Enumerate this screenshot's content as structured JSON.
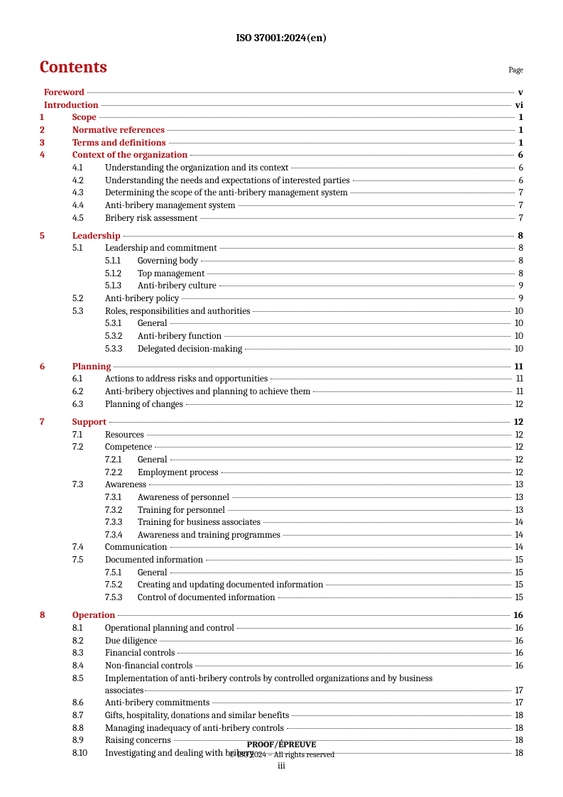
{
  "document": {
    "header": "ISO 37001:2024(en)",
    "contents_heading": "Contents",
    "page_label": "Page",
    "footer": {
      "proof": "PROOF/ÉPREUVE",
      "copyright": "© ISO 2024 – All rights reserved",
      "page_number": "iii"
    }
  },
  "toc": [
    {
      "type": "line",
      "level": 0,
      "num": "",
      "title": "Foreword",
      "page": "v",
      "bold": true,
      "red": true,
      "num_hidden": true
    },
    {
      "type": "line",
      "level": 0,
      "num": "",
      "title": "Introduction",
      "page": "vi",
      "bold": true,
      "red": true,
      "num_hidden": true
    },
    {
      "type": "line",
      "level": 0,
      "num": "1",
      "title": "Scope",
      "page": "1",
      "bold": true,
      "red": true
    },
    {
      "type": "line",
      "level": 0,
      "num": "2",
      "title": "Normative references",
      "page": "1",
      "bold": true,
      "red": true
    },
    {
      "type": "line",
      "level": 0,
      "num": "3",
      "title": "Terms and definitions",
      "page": "1",
      "bold": true,
      "red": true
    },
    {
      "type": "line",
      "level": 0,
      "num": "4",
      "title": "Context of the organization",
      "page": "6",
      "bold": true,
      "red": true
    },
    {
      "type": "line",
      "level": 1,
      "num": "4.1",
      "title": "Understanding the organization and its context",
      "page": "6"
    },
    {
      "type": "line",
      "level": 1,
      "num": "4.2",
      "title": "Understanding the needs and expectations of interested parties",
      "page": "6"
    },
    {
      "type": "line",
      "level": 1,
      "num": "4.3",
      "title": "Determining the scope of the anti-bribery management system",
      "page": "7"
    },
    {
      "type": "line",
      "level": 1,
      "num": "4.4",
      "title": "Anti-bribery management system",
      "page": "7"
    },
    {
      "type": "line",
      "level": 1,
      "num": "4.5",
      "title": "Bribery risk assessment",
      "page": "7"
    },
    {
      "type": "gap"
    },
    {
      "type": "line",
      "level": 0,
      "num": "5",
      "title": "Leadership",
      "page": "8",
      "bold": true,
      "red": true
    },
    {
      "type": "line",
      "level": 1,
      "num": "5.1",
      "title": "Leadership and commitment",
      "page": "8"
    },
    {
      "type": "line",
      "level": 2,
      "num": "5.1.1",
      "title": "Governing body",
      "page": "8"
    },
    {
      "type": "line",
      "level": 2,
      "num": "5.1.2",
      "title": "Top management",
      "page": "8"
    },
    {
      "type": "line",
      "level": 2,
      "num": "5.1.3",
      "title": "Anti-bribery culture",
      "page": "9"
    },
    {
      "type": "line",
      "level": 1,
      "num": "5.2",
      "title": "Anti-bribery policy",
      "page": "9"
    },
    {
      "type": "line",
      "level": 1,
      "num": "5.3",
      "title": "Roles, responsibilities and authorities",
      "page": "10"
    },
    {
      "type": "line",
      "level": 2,
      "num": "5.3.1",
      "title": "General",
      "page": "10"
    },
    {
      "type": "line",
      "level": 2,
      "num": "5.3.2",
      "title": "Anti-bribery function",
      "page": "10"
    },
    {
      "type": "line",
      "level": 2,
      "num": "5.3.3",
      "title": "Delegated decision-making",
      "page": "10"
    },
    {
      "type": "gap"
    },
    {
      "type": "line",
      "level": 0,
      "num": "6",
      "title": "Planning",
      "page": "11",
      "bold": true,
      "red": true
    },
    {
      "type": "line",
      "level": 1,
      "num": "6.1",
      "title": "Actions to address risks and opportunities",
      "page": "11"
    },
    {
      "type": "line",
      "level": 1,
      "num": "6.2",
      "title": "Anti-bribery objectives and planning to achieve them",
      "page": "11"
    },
    {
      "type": "line",
      "level": 1,
      "num": "6.3",
      "title": "Planning of changes",
      "page": "12"
    },
    {
      "type": "gap"
    },
    {
      "type": "line",
      "level": 0,
      "num": "7",
      "title": "Support",
      "page": "12",
      "bold": true,
      "red": true
    },
    {
      "type": "line",
      "level": 1,
      "num": "7.1",
      "title": "Resources",
      "page": "12"
    },
    {
      "type": "line",
      "level": 1,
      "num": "7.2",
      "title": "Competence",
      "page": "12"
    },
    {
      "type": "line",
      "level": 2,
      "num": "7.2.1",
      "title": "General",
      "page": "12"
    },
    {
      "type": "line",
      "level": 2,
      "num": "7.2.2",
      "title": "Employment process",
      "page": "12"
    },
    {
      "type": "line",
      "level": 1,
      "num": "7.3",
      "title": "Awareness",
      "page": "13"
    },
    {
      "type": "line",
      "level": 2,
      "num": "7.3.1",
      "title": "Awareness of personnel",
      "page": "13"
    },
    {
      "type": "line",
      "level": 2,
      "num": "7.3.2",
      "title": "Training for personnel",
      "page": "13"
    },
    {
      "type": "line",
      "level": 2,
      "num": "7.3.3",
      "title": "Training for business associates",
      "page": "14"
    },
    {
      "type": "line",
      "level": 2,
      "num": "7.3.4",
      "title": "Awareness and training programmes",
      "page": "14"
    },
    {
      "type": "line",
      "level": 1,
      "num": "7.4",
      "title": "Communication",
      "page": "14"
    },
    {
      "type": "line",
      "level": 1,
      "num": "7.5",
      "title": "Documented information",
      "page": "15"
    },
    {
      "type": "line",
      "level": 2,
      "num": "7.5.1",
      "title": "General",
      "page": "15"
    },
    {
      "type": "line",
      "level": 2,
      "num": "7.5.2",
      "title": "Creating and updating documented information",
      "page": "15"
    },
    {
      "type": "line",
      "level": 2,
      "num": "7.5.3",
      "title": "Control of documented information",
      "page": "15"
    },
    {
      "type": "gap"
    },
    {
      "type": "line",
      "level": 0,
      "num": "8",
      "title": "Operation",
      "page": "16",
      "bold": true,
      "red": true
    },
    {
      "type": "line",
      "level": 1,
      "num": "8.1",
      "title": "Operational planning and control",
      "page": "16"
    },
    {
      "type": "line",
      "level": 1,
      "num": "8.2",
      "title": "Due diligence",
      "page": "16"
    },
    {
      "type": "line",
      "level": 1,
      "num": "8.3",
      "title": "Financial controls",
      "page": "16"
    },
    {
      "type": "line",
      "level": 1,
      "num": "8.4",
      "title": "Non-financial controls",
      "page": "16"
    },
    {
      "type": "multiline",
      "level": 1,
      "num": "8.5",
      "first_line": "Implementation of anti-bribery controls by controlled organizations and by business",
      "last_line": "associates",
      "page": "17"
    },
    {
      "type": "line",
      "level": 1,
      "num": "8.6",
      "title": "Anti-bribery commitments",
      "page": "17"
    },
    {
      "type": "line",
      "level": 1,
      "num": "8.7",
      "title": "Gifts, hospitality, donations and similar benefits",
      "page": "18"
    },
    {
      "type": "line",
      "level": 1,
      "num": "8.8",
      "title": "Managing inadequacy of anti-bribery controls",
      "page": "18"
    },
    {
      "type": "line",
      "level": 1,
      "num": "8.9",
      "title": "Raising concerns",
      "page": "18"
    },
    {
      "type": "line",
      "level": 1,
      "num": "8.10",
      "title": "Investigating and dealing with bribery",
      "page": "18"
    }
  ]
}
